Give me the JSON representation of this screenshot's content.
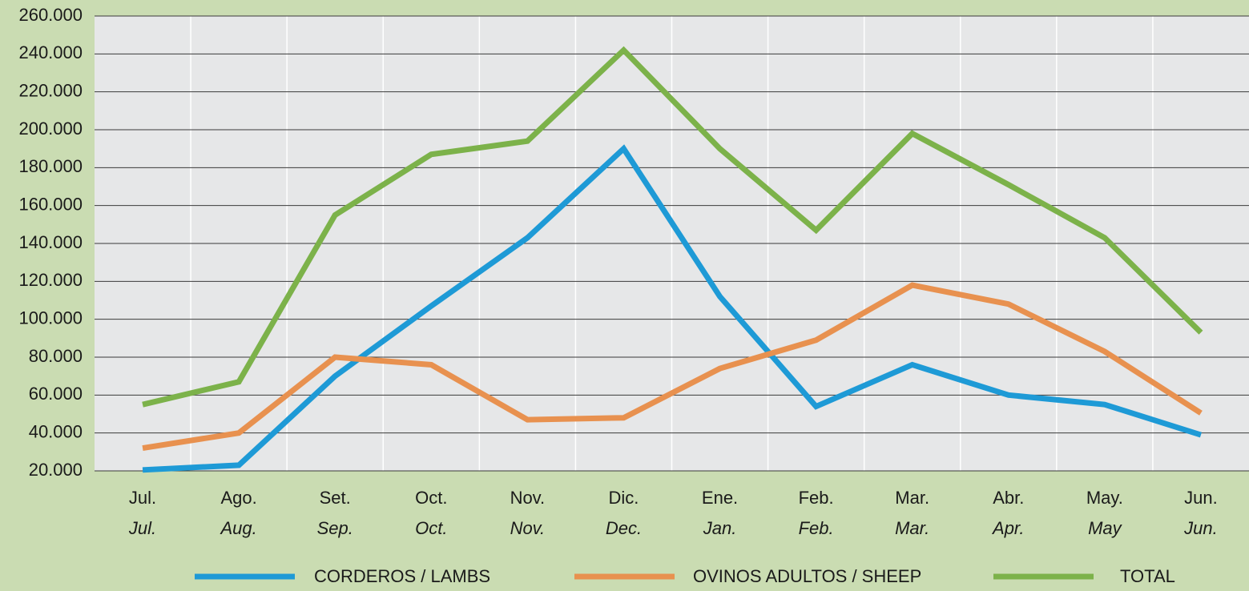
{
  "chart_data": {
    "type": "line",
    "categories": [
      "Jul.",
      "Ago.",
      "Set.",
      "Oct.",
      "Nov.",
      "Dic.",
      "Ene.",
      "Feb.",
      "Mar.",
      "Abr.",
      "May.",
      "Jun."
    ],
    "categories_en": [
      "Jul.",
      "Aug.",
      "Sep.",
      "Oct.",
      "Nov.",
      "Dec.",
      "Jan.",
      "Feb.",
      "Mar.",
      "Apr.",
      "May",
      "Jun."
    ],
    "series": [
      {
        "name": "CORDEROS / LAMBS",
        "color": "#1e9ad6",
        "values": [
          20500,
          23000,
          70000,
          107000,
          143000,
          190000,
          112000,
          54000,
          76000,
          60000,
          55000,
          39000
        ]
      },
      {
        "name": "OVINOS ADULTOS / SHEEP",
        "color": "#e8914f",
        "values": [
          32000,
          40000,
          80000,
          76000,
          47000,
          48000,
          74000,
          89000,
          118000,
          108000,
          83000,
          50500
        ]
      },
      {
        "name": "TOTAL",
        "color": "#7cb24a",
        "values": [
          55000,
          67000,
          155000,
          187000,
          194000,
          242000,
          190000,
          147000,
          198000,
          171000,
          143000,
          93000
        ]
      }
    ],
    "ylim": [
      20000,
      260000
    ],
    "yticks": [
      {
        "value": 20000,
        "label": "20.000"
      },
      {
        "value": 40000,
        "label": "40.000"
      },
      {
        "value": 60000,
        "label": "60.000"
      },
      {
        "value": 80000,
        "label": "80.000"
      },
      {
        "value": 100000,
        "label": "100.000"
      },
      {
        "value": 120000,
        "label": "120.000"
      },
      {
        "value": 140000,
        "label": "140.000"
      },
      {
        "value": 160000,
        "label": "160.000"
      },
      {
        "value": 180000,
        "label": "180.000"
      },
      {
        "value": 200000,
        "label": "200.000"
      },
      {
        "value": 220000,
        "label": "220.000"
      },
      {
        "value": 240000,
        "label": "240.000"
      },
      {
        "value": 260000,
        "label": "260.000"
      }
    ],
    "grid": true,
    "legend": "bottom"
  }
}
